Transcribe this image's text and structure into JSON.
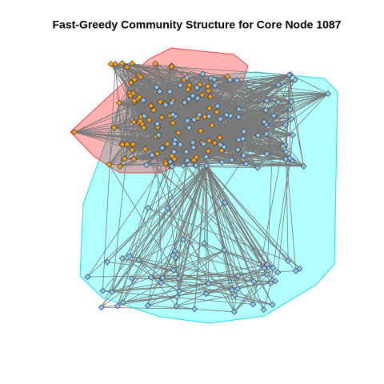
{
  "title": "Fast-Greedy Community Structure for Core Node 1087"
}
